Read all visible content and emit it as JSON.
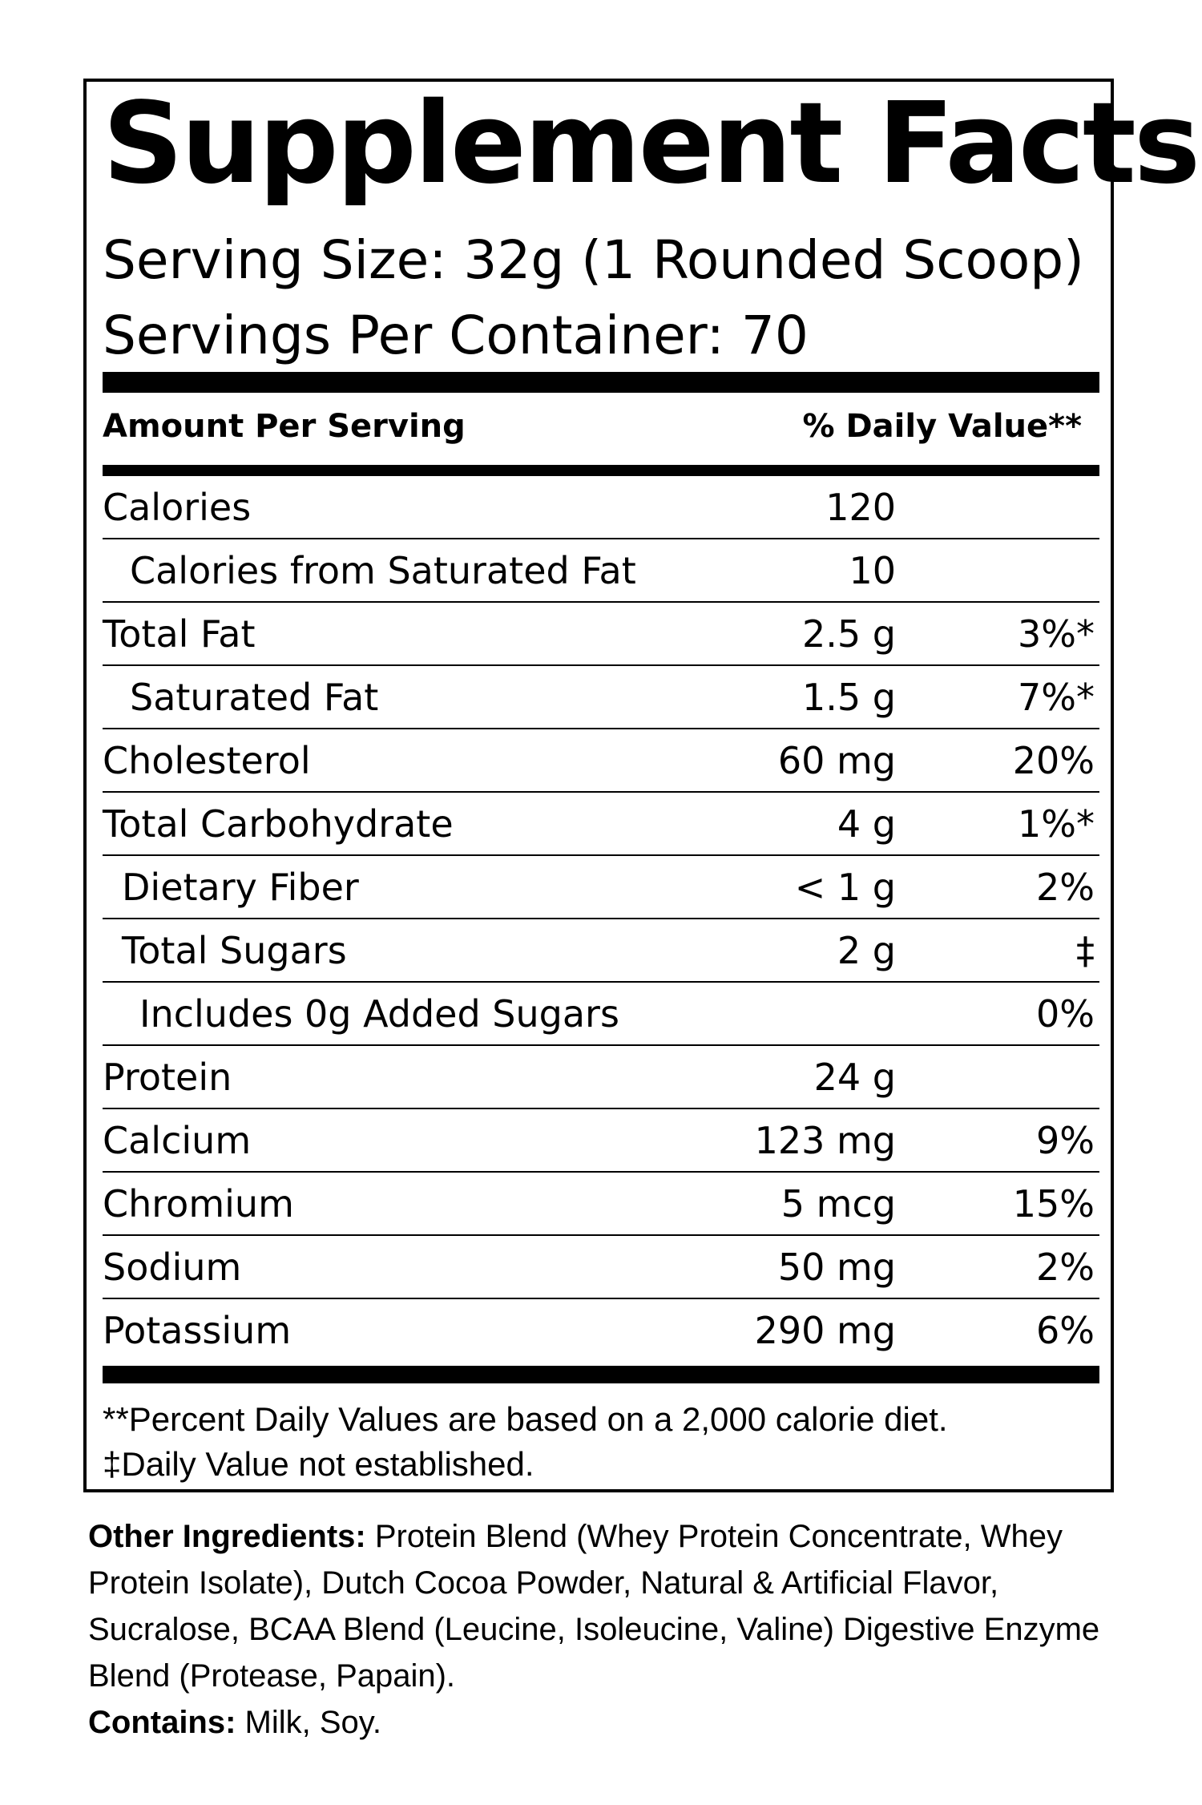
{
  "label": {
    "title": "Supplement Facts",
    "serving_size": "Serving Size: 32g (1 Rounded Scoop)",
    "servings_per_container": "Servings Per Container: 70",
    "amount_per_serving_header": "Amount Per Serving",
    "daily_value_header": "% Daily Value**",
    "nutrients": [
      {
        "name": "Calories",
        "amount": "120",
        "dv": ""
      },
      {
        "name": "Calories from Saturated Fat",
        "amount": "10",
        "dv": ""
      },
      {
        "name": "Total Fat",
        "amount": "2.5 g",
        "dv": "3%*"
      },
      {
        "name": "Saturated Fat",
        "amount": "1.5 g",
        "dv": "7%*"
      },
      {
        "name": "Cholesterol",
        "amount": "60 mg",
        "dv": "20%"
      },
      {
        "name": "Total Carbohydrate",
        "amount": "4 g",
        "dv": "1%*"
      },
      {
        "name": "Dietary Fiber",
        "amount": "< 1 g",
        "dv": "2%"
      },
      {
        "name": "Total Sugars",
        "amount": "2 g",
        "dv": "‡"
      },
      {
        "name": "Includes 0g Added Sugars",
        "amount": "",
        "dv": "0%"
      },
      {
        "name": "Protein",
        "amount": "24 g",
        "dv": ""
      },
      {
        "name": "Calcium",
        "amount": "123 mg",
        "dv": "9%"
      },
      {
        "name": "Chromium",
        "amount": "5 mcg",
        "dv": "15%"
      },
      {
        "name": "Sodium",
        "amount": "50 mg",
        "dv": "2%"
      },
      {
        "name": "Potassium",
        "amount": "290 mg",
        "dv": "6%"
      }
    ],
    "footnote_1": "**Percent Daily Values are based on a 2,000 calorie diet.",
    "footnote_2": "‡Daily Value not established."
  },
  "ingredients": {
    "other_label": "Other Ingredients:",
    "other_text": " Protein Blend (Whey Protein Concentrate, Whey Protein Isolate), Dutch Cocoa Powder, Natural & Artificial Flavor, Sucralose, BCAA Blend (Leucine, Isoleucine, Valine) Digestive Enzyme Blend (Protease, Papain).",
    "contains_label": "Contains:",
    "contains_text": " Milk, Soy."
  }
}
